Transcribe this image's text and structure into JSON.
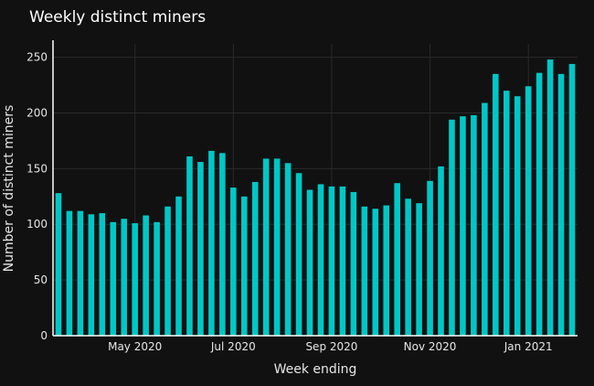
{
  "chart_data": {
    "type": "bar",
    "title": "Weekly distinct miners",
    "xlabel": "Week ending",
    "ylabel": "Number of distinct miners",
    "ylim": [
      0,
      262
    ],
    "y_ticks": [
      0,
      50,
      100,
      150,
      200,
      250
    ],
    "grid": true,
    "legend": "none",
    "colors": {
      "background": "#111111",
      "bar": "#00c7c7",
      "grid": "#2a2a2a",
      "axis": "#ffffff",
      "text": "#e6e6e6"
    },
    "x_tick_labels": [
      {
        "label": "May 2020",
        "index": 7
      },
      {
        "label": "Jul 2020",
        "index": 16
      },
      {
        "label": "Sep 2020",
        "index": 25
      },
      {
        "label": "Nov 2020",
        "index": 34
      },
      {
        "label": "Jan 2021",
        "index": 43
      }
    ],
    "values": [
      128,
      112,
      112,
      109,
      110,
      102,
      105,
      101,
      108,
      102,
      116,
      125,
      161,
      156,
      166,
      164,
      133,
      125,
      138,
      159,
      159,
      155,
      146,
      131,
      136,
      134,
      134,
      129,
      116,
      114,
      117,
      137,
      123,
      119,
      139,
      152,
      194,
      197,
      198,
      209,
      235,
      220,
      215,
      224,
      236,
      248,
      235,
      244
    ]
  }
}
